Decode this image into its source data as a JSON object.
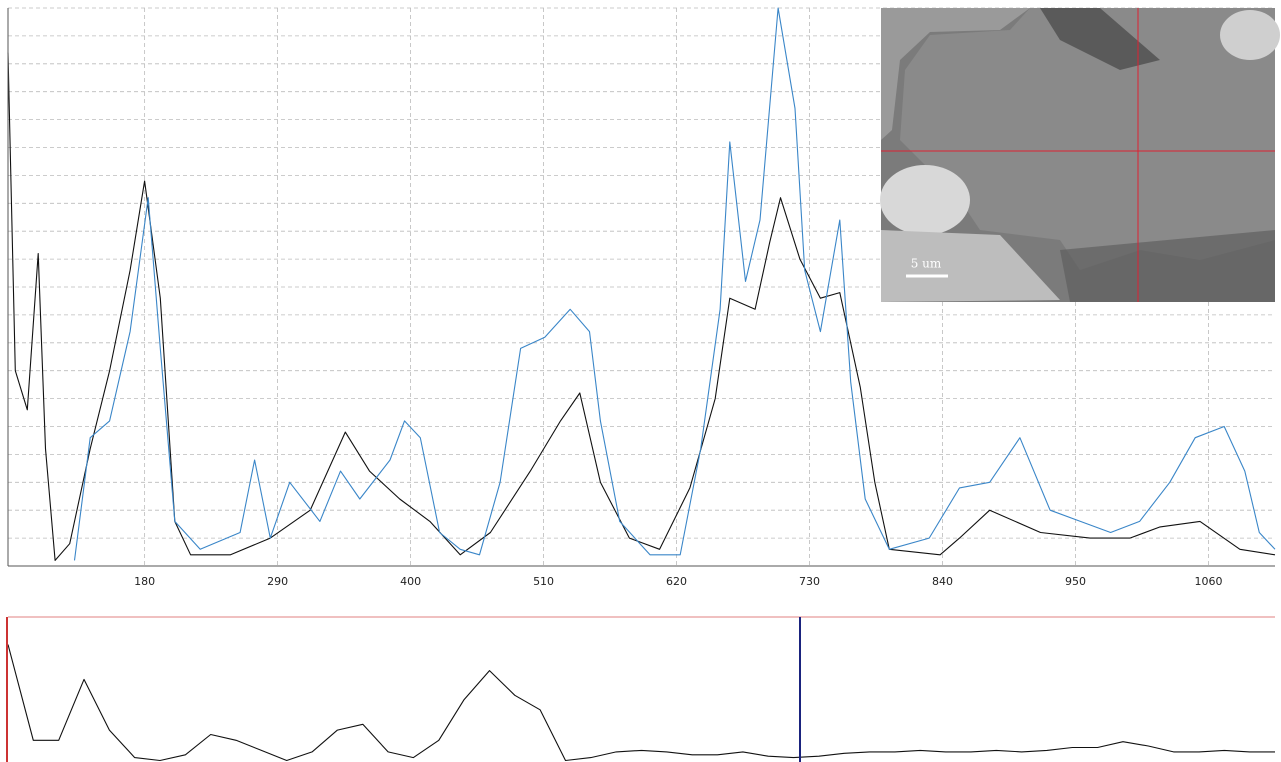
{
  "chart_data": [
    {
      "type": "line",
      "xlim": [
        67,
        1115
      ],
      "xticks": [
        180,
        290,
        400,
        510,
        620,
        730,
        840,
        950,
        1060
      ],
      "ylim": [
        0,
        100
      ],
      "yticks": [
        0,
        5,
        10,
        15,
        20,
        25,
        30,
        35,
        40,
        45,
        50,
        55,
        60,
        65,
        70,
        75,
        80,
        85,
        90,
        95,
        100
      ],
      "grid": true,
      "series": [
        {
          "color": "#111111",
          "x": [
            67,
            73,
            83,
            92,
            98,
            106,
            118,
            135,
            151,
            168,
            180,
            193,
            205,
            218,
            251,
            284,
            317,
            346,
            366,
            391,
            416,
            441,
            466,
            499,
            524,
            540,
            557,
            581,
            606,
            631,
            652,
            664,
            685,
            697,
            706,
            722,
            739,
            755,
            772,
            784,
            796,
            838,
            854,
            879,
            921,
            962,
            995,
            1020,
            1053,
            1086,
            1115
          ],
          "values": [
            92,
            35,
            28,
            56,
            21,
            1,
            4,
            21,
            35,
            53,
            69,
            48,
            8,
            2,
            2,
            5,
            10,
            24,
            17,
            12,
            8,
            2,
            6,
            17,
            26,
            31,
            15,
            5,
            3,
            14,
            30,
            48,
            46,
            58,
            66,
            55,
            48,
            49,
            32,
            15,
            3,
            2,
            5,
            10,
            6,
            5,
            5,
            7,
            8,
            3,
            2
          ]
        },
        {
          "color": "#3a86c8",
          "x": [
            122,
            135,
            151,
            168,
            183,
            193,
            205,
            226,
            259,
            271,
            284,
            300,
            325,
            342,
            358,
            383,
            395,
            408,
            424,
            441,
            457,
            474,
            491,
            511,
            532,
            548,
            557,
            573,
            598,
            623,
            640,
            656,
            664,
            677,
            689,
            704,
            718,
            726,
            739,
            755,
            764,
            776,
            796,
            829,
            854,
            879,
            904,
            929,
            954,
            979,
            1003,
            1028,
            1049,
            1073,
            1090,
            1102,
            1115
          ],
          "values": [
            1,
            23,
            26,
            42,
            66,
            39,
            8,
            3,
            6,
            19,
            5,
            15,
            8,
            17,
            12,
            19,
            26,
            23,
            6,
            3,
            2,
            15,
            39,
            41,
            46,
            42,
            26,
            8,
            2,
            2,
            21,
            46,
            76,
            51,
            62,
            100,
            82,
            53,
            42,
            62,
            33,
            12,
            3,
            5,
            14,
            15,
            23,
            10,
            8,
            6,
            8,
            15,
            23,
            25,
            17,
            6,
            3
          ]
        }
      ]
    },
    {
      "type": "line",
      "ylim": [
        0,
        100
      ],
      "series": [
        {
          "color": "#111111",
          "values": [
            81,
            15,
            15,
            57,
            22,
            3,
            1,
            5,
            19,
            15,
            8,
            1,
            7,
            22,
            26,
            7,
            3,
            15,
            43,
            63,
            46,
            36,
            1,
            3,
            7,
            8,
            7,
            5,
            5,
            7,
            4,
            3,
            4,
            6,
            7,
            7,
            8,
            7,
            7,
            8,
            7,
            8,
            10,
            10,
            14,
            11,
            7,
            7,
            8,
            7,
            7
          ]
        }
      ]
    }
  ],
  "inset": {
    "scale_label": "5 um"
  }
}
